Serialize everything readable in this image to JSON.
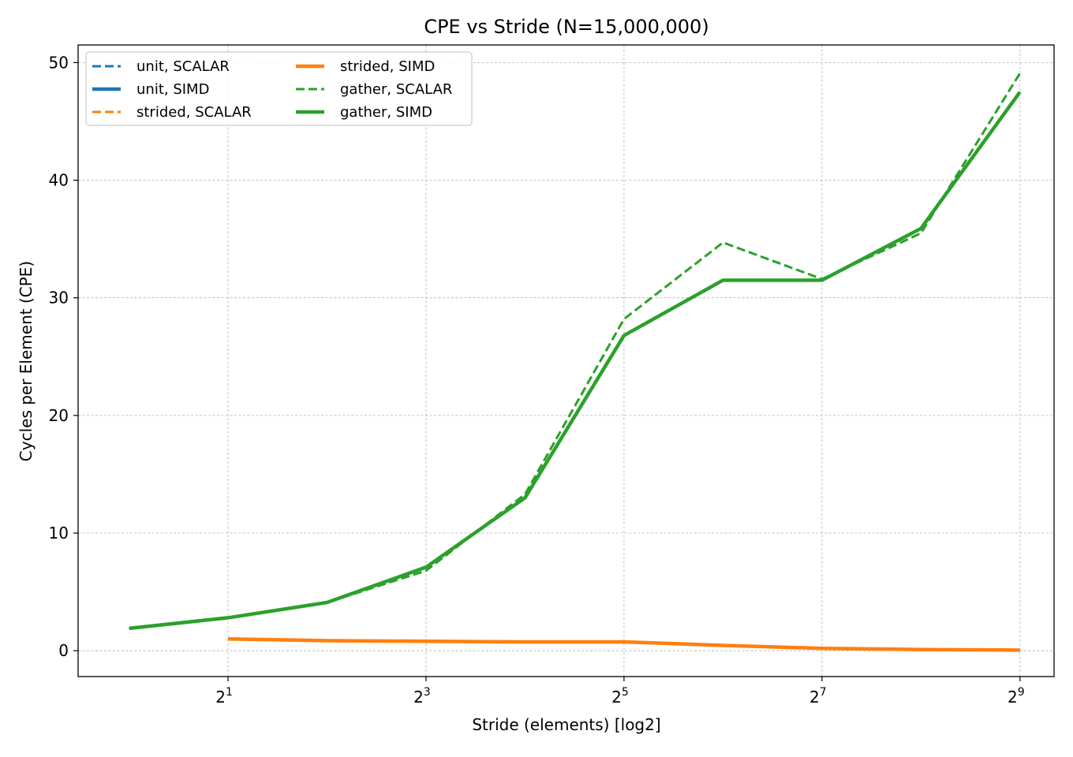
{
  "chart_data": {
    "type": "line",
    "title": "CPE vs Stride (N=15,000,000)",
    "xlabel": "Stride (elements) [log2]",
    "ylabel": "Cycles per Element (CPE)",
    "x_scale": "log2",
    "xlim": [
      0.7,
      650
    ],
    "ylim": [
      -2.2,
      51.5
    ],
    "grid": true,
    "legend_position": "top-left",
    "legend_columns": 2,
    "x_ticks": [
      {
        "value": 2,
        "base": "2",
        "exp": "1"
      },
      {
        "value": 8,
        "base": "2",
        "exp": "3"
      },
      {
        "value": 32,
        "base": "2",
        "exp": "5"
      },
      {
        "value": 128,
        "base": "2",
        "exp": "7"
      },
      {
        "value": 512,
        "base": "2",
        "exp": "9"
      }
    ],
    "y_ticks": [
      0,
      10,
      20,
      30,
      40,
      50
    ],
    "series": [
      {
        "name": "unit, SCALAR",
        "color": "#1f77b4",
        "style": "dashed",
        "x": [],
        "y": []
      },
      {
        "name": "unit, SIMD",
        "color": "#1f77b4",
        "style": "solid",
        "x": [],
        "y": []
      },
      {
        "name": "strided, SCALAR",
        "color": "#ff7f0e",
        "style": "dashed",
        "x": [
          2,
          4,
          8,
          16,
          32,
          64,
          128,
          256,
          512
        ],
        "y": [
          1.0,
          0.85,
          0.8,
          0.75,
          0.75,
          0.45,
          0.2,
          0.1,
          0.05
        ]
      },
      {
        "name": "strided, SIMD",
        "color": "#ff7f0e",
        "style": "solid",
        "x": [
          2,
          4,
          8,
          16,
          32,
          64,
          128,
          256,
          512
        ],
        "y": [
          1.0,
          0.85,
          0.8,
          0.75,
          0.75,
          0.45,
          0.2,
          0.1,
          0.05
        ]
      },
      {
        "name": "gather, SCALAR",
        "color": "#2ca02c",
        "style": "dashed",
        "x": [
          1,
          2,
          4,
          8,
          16,
          32,
          64,
          128,
          256,
          512
        ],
        "y": [
          1.9,
          2.8,
          4.1,
          6.8,
          13.3,
          28.2,
          34.7,
          31.6,
          35.5,
          49.1
        ]
      },
      {
        "name": "gather, SIMD",
        "color": "#2ca02c",
        "style": "solid",
        "x": [
          1,
          2,
          4,
          8,
          16,
          32,
          64,
          128,
          256,
          512
        ],
        "y": [
          1.9,
          2.8,
          4.1,
          7.1,
          13.0,
          26.8,
          31.5,
          31.5,
          35.9,
          47.5
        ]
      }
    ]
  }
}
